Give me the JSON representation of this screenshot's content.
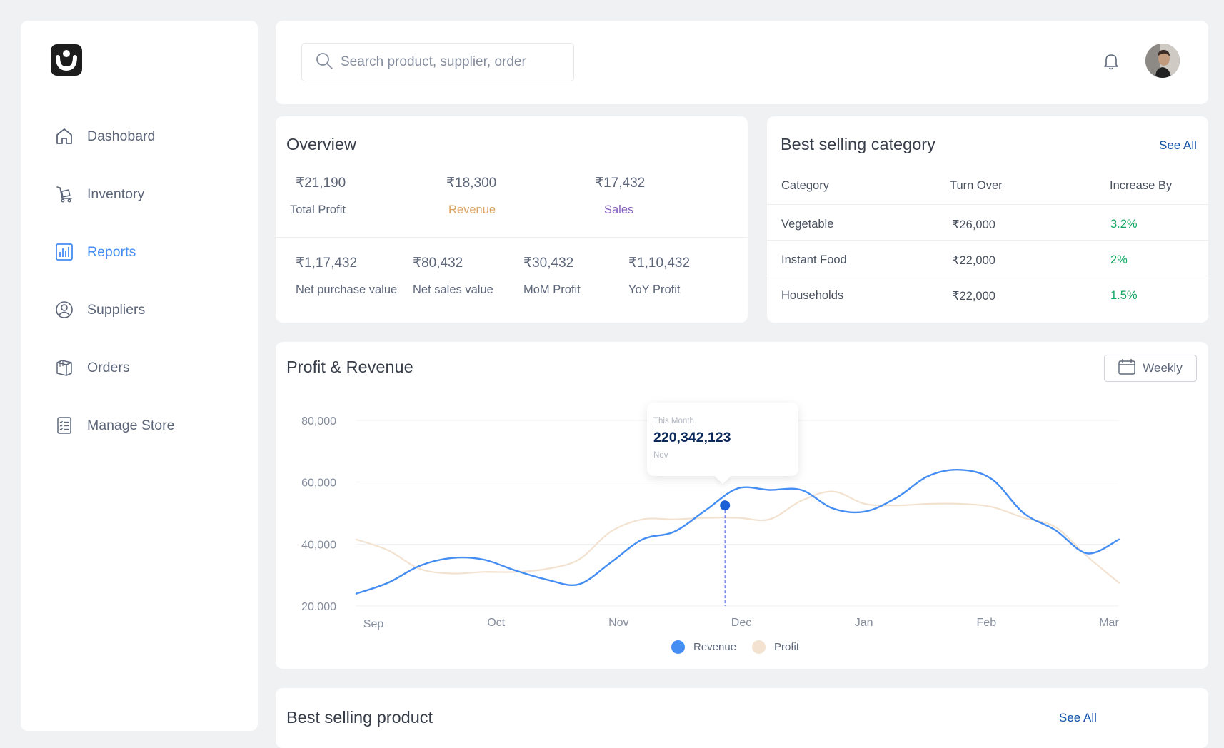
{
  "sidebar": {
    "items": [
      {
        "label": "Dashobard",
        "icon": "home-icon"
      },
      {
        "label": "Inventory",
        "icon": "trolley-icon"
      },
      {
        "label": "Reports",
        "icon": "bar-chart-icon",
        "active": true
      },
      {
        "label": "Suppliers",
        "icon": "user-circle-icon"
      },
      {
        "label": "Orders",
        "icon": "package-icon"
      },
      {
        "label": "Manage Store",
        "icon": "checklist-icon"
      }
    ]
  },
  "header": {
    "search_placeholder": "Search product, supplier, order"
  },
  "overview": {
    "title": "Overview",
    "top": [
      {
        "value": "₹21,190",
        "label": "Total Profit",
        "color": "#5d6679"
      },
      {
        "value": "₹18,300",
        "label": "Revenue",
        "color": "#dba362"
      },
      {
        "value": "₹17,432",
        "label": "Sales",
        "color": "#845ebc"
      }
    ],
    "bottom": [
      {
        "value": "₹1,17,432",
        "label": "Net purchase value"
      },
      {
        "value": "₹80,432",
        "label": "Net sales value"
      },
      {
        "value": "₹30,432",
        "label": "MoM Profit"
      },
      {
        "value": "₹1,10,432",
        "label": "YoY Profit"
      }
    ]
  },
  "best_category": {
    "title": "Best selling category",
    "see_all": "See All",
    "headers": [
      "Category",
      "Turn Over",
      "Increase By"
    ],
    "rows": [
      {
        "category": "Vegetable",
        "turnover": "₹26,000",
        "increase": "3.2%"
      },
      {
        "category": "Instant Food",
        "turnover": "₹22,000",
        "increase": "2%"
      },
      {
        "category": "Households",
        "turnover": "₹22,000",
        "increase": "1.5%"
      }
    ]
  },
  "profit_revenue": {
    "title": "Profit  & Revenue",
    "period_button": "Weekly",
    "tooltip": {
      "label": "This Month",
      "value": "220,342,123",
      "sub": "Nov"
    },
    "legend": [
      {
        "name": "Revenue",
        "color": "#448df2"
      },
      {
        "name": "Profit",
        "color": "#f2e2cf"
      }
    ]
  },
  "chart_data": {
    "type": "line",
    "y_tick_labels": [
      "80,000",
      "60,000",
      "40,000",
      "20.000"
    ],
    "y_ticks": [
      80000,
      60000,
      40000,
      20000
    ],
    "ylim": [
      20000,
      80000
    ],
    "x_tick_labels": [
      "Sep",
      "Oct",
      "Nov",
      "Dec",
      "Jan",
      "Feb",
      "Mar"
    ],
    "x": [
      0,
      0.5,
      1,
      1.5,
      2,
      2.5,
      3,
      3.5,
      4,
      4.5,
      5,
      5.5,
      6,
      6.5,
      7,
      7.5,
      8,
      8.5,
      9,
      9.5,
      10,
      10.5,
      11,
      11.5,
      12
    ],
    "series": [
      {
        "name": "Revenue",
        "color": "#448df2",
        "values": [
          24000,
          27500,
          33000,
          35500,
          35000,
          31500,
          28500,
          27000,
          34000,
          41500,
          44000,
          51000,
          58000,
          57500,
          57500,
          51500,
          50500,
          55000,
          62000,
          64000,
          61000,
          50000,
          44500,
          37000,
          41500
        ]
      },
      {
        "name": "Profit",
        "color": "#f2e2cf",
        "values": [
          41500,
          38000,
          32000,
          30500,
          31000,
          31000,
          32000,
          35000,
          44000,
          48000,
          48000,
          48500,
          48500,
          48000,
          54000,
          57000,
          53000,
          52500,
          53000,
          53000,
          52000,
          48500,
          45500,
          36000,
          27500
        ]
      }
    ],
    "highlight": {
      "series": "Revenue",
      "x": 5.8,
      "value": 52500
    },
    "grid": true
  },
  "best_product": {
    "title": "Best selling product",
    "see_all": "See All"
  }
}
